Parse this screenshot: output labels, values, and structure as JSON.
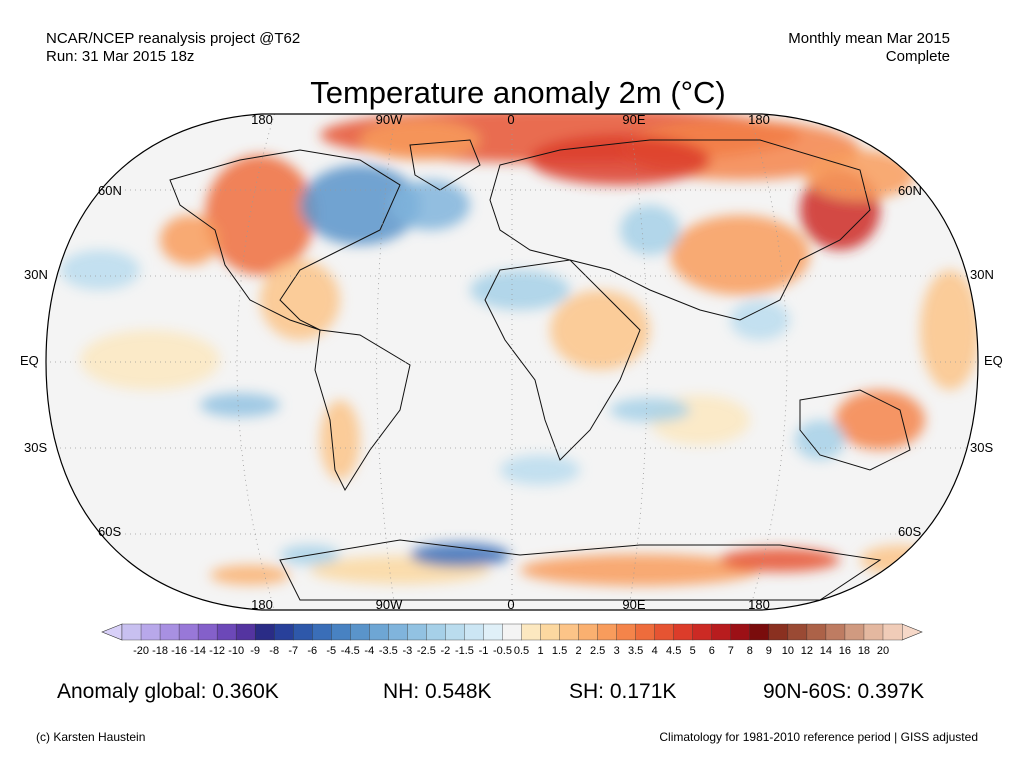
{
  "header": {
    "project": "NCAR/NCEP reanalysis project @T62",
    "run": "Run: 31 Mar 2015 18z",
    "period": "Monthly mean Mar 2015",
    "status": "Complete"
  },
  "title": "Temperature anomaly 2m (°C)",
  "map": {
    "projection": "Robinson",
    "lon_labels": [
      "180",
      "90W",
      "0",
      "90E",
      "180"
    ],
    "lat_labels_left": [
      "60N",
      "30N",
      "EQ",
      "30S",
      "60S"
    ],
    "lat_labels_right": [
      "60N",
      "30N",
      "EQ",
      "30S",
      "60S"
    ],
    "ocean_color": "#f4f4f4",
    "outline_color": "#000000"
  },
  "colorbar": {
    "labels": [
      "-20",
      "-18",
      "-16",
      "-14",
      "-12",
      "-10",
      "-9",
      "-8",
      "-7",
      "-6",
      "-5",
      "-4.5",
      "-4",
      "-3.5",
      "-3",
      "-2.5",
      "-2",
      "-1.5",
      "-1",
      "-0.5",
      "0.5",
      "1",
      "1.5",
      "2",
      "2.5",
      "3",
      "3.5",
      "4",
      "4.5",
      "5",
      "6",
      "7",
      "8",
      "9",
      "10",
      "12",
      "14",
      "16",
      "18",
      "20"
    ],
    "colors": [
      "#c8c0f0",
      "#b8a8ea",
      "#a890e2",
      "#9878d8",
      "#8460ca",
      "#6c48b8",
      "#5434a0",
      "#2a2c86",
      "#28409a",
      "#2e58aa",
      "#3a6eb8",
      "#4882c2",
      "#5a94ca",
      "#6ea6d4",
      "#80b4dc",
      "#92c2e2",
      "#a6d0e8",
      "#badcee",
      "#cce6f4",
      "#e0f0f8",
      "#f4f4f4",
      "#fce8c0",
      "#fcd8a0",
      "#fcc488",
      "#fab070",
      "#f89c5c",
      "#f4844a",
      "#ee6c3c",
      "#e65432",
      "#dc3c2a",
      "#cc2a24",
      "#b81c1e",
      "#9c1016",
      "#7a0c0c",
      "#8a3020",
      "#9a4a34",
      "#ac6248",
      "#be7c62",
      "#d09a80",
      "#e4b8a0",
      "#f0ccb8"
    ],
    "left_tip_color": "#d8d0f8",
    "right_tip_color": "#f6d8c8"
  },
  "stats": {
    "global": "Anomaly global: 0.360K",
    "nh": "NH: 0.548K",
    "sh": "SH: 0.171K",
    "arctic": "90N-60S: 0.397K"
  },
  "footer": {
    "credit": "(c) Karsten Haustein",
    "note": "Climatology for 1981-2010 reference period | GISS adjusted"
  }
}
